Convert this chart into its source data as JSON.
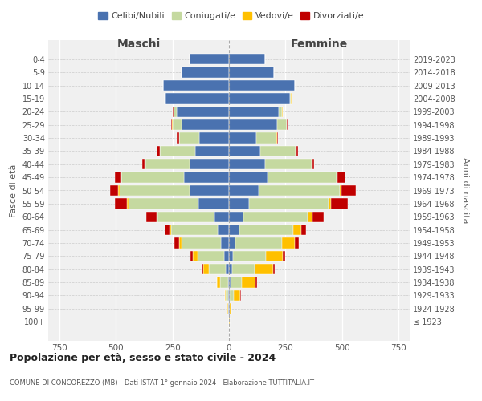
{
  "age_groups": [
    "0-4",
    "5-9",
    "10-14",
    "15-19",
    "20-24",
    "25-29",
    "30-34",
    "35-39",
    "40-44",
    "45-49",
    "50-54",
    "55-59",
    "60-64",
    "65-69",
    "70-74",
    "75-79",
    "80-84",
    "85-89",
    "90-94",
    "95-99",
    "100+"
  ],
  "birth_years": [
    "2019-2023",
    "2014-2018",
    "2009-2013",
    "2004-2008",
    "1999-2003",
    "1994-1998",
    "1989-1993",
    "1984-1988",
    "1979-1983",
    "1974-1978",
    "1969-1973",
    "1964-1968",
    "1959-1963",
    "1954-1958",
    "1949-1953",
    "1944-1948",
    "1939-1943",
    "1934-1938",
    "1929-1933",
    "1924-1928",
    "≤ 1923"
  ],
  "colors": {
    "celibi": "#4a72b0",
    "coniugati": "#c5d9a0",
    "vedovi": "#ffc000",
    "divorziati": "#c00000"
  },
  "maschi": {
    "celibi": [
      175,
      210,
      290,
      280,
      230,
      210,
      130,
      150,
      175,
      200,
      175,
      135,
      65,
      50,
      35,
      20,
      15,
      5,
      3,
      2,
      1
    ],
    "coniugati": [
      0,
      0,
      0,
      5,
      15,
      40,
      90,
      155,
      195,
      275,
      310,
      310,
      250,
      205,
      175,
      120,
      75,
      35,
      10,
      3,
      0
    ],
    "vedovi": [
      0,
      0,
      0,
      0,
      2,
      2,
      2,
      2,
      3,
      3,
      5,
      5,
      5,
      8,
      12,
      20,
      25,
      15,
      5,
      2,
      0
    ],
    "divorziati": [
      0,
      0,
      0,
      0,
      2,
      5,
      8,
      12,
      12,
      28,
      35,
      55,
      45,
      22,
      20,
      10,
      5,
      0,
      0,
      0,
      0
    ]
  },
  "femmine": {
    "celibi": [
      160,
      200,
      290,
      270,
      220,
      215,
      120,
      140,
      160,
      170,
      130,
      90,
      65,
      45,
      30,
      18,
      15,
      8,
      5,
      2,
      1
    ],
    "coniugati": [
      0,
      0,
      0,
      5,
      15,
      40,
      90,
      155,
      205,
      305,
      360,
      350,
      285,
      240,
      205,
      145,
      100,
      50,
      15,
      2,
      0
    ],
    "vedovi": [
      0,
      0,
      0,
      2,
      2,
      2,
      2,
      2,
      3,
      5,
      8,
      12,
      20,
      35,
      55,
      75,
      80,
      60,
      30,
      8,
      2
    ],
    "divorziati": [
      0,
      0,
      0,
      0,
      2,
      2,
      5,
      10,
      10,
      35,
      65,
      75,
      50,
      20,
      20,
      12,
      8,
      5,
      2,
      0,
      0
    ]
  },
  "xlim": 800,
  "title": "Popolazione per età, sesso e stato civile - 2024",
  "subtitle": "COMUNE DI CONCOREZZO (MB) - Dati ISTAT 1° gennaio 2024 - Elaborazione TUTTITALIA.IT",
  "ylabel": "Fasce di età",
  "ylabel_right": "Anni di nascita",
  "legend_labels": [
    "Celibi/Nubili",
    "Coniugati/e",
    "Vedovi/e",
    "Divorziati/e"
  ],
  "maschi_label": "Maschi",
  "femmine_label": "Femmine",
  "bg_color": "#ffffff",
  "plot_bg_color": "#f0f0f0"
}
